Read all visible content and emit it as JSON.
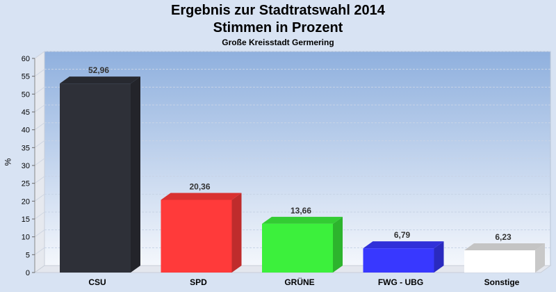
{
  "chart_data": {
    "type": "bar",
    "title": "Ergebnis zur Stadtratswahl 2014",
    "subtitle": "Stimmen in Prozent",
    "caption": "Große Kreisstadt Germering",
    "ylabel": "%",
    "xlabel": "",
    "ylim": [
      0,
      60
    ],
    "yticks": [
      0,
      5,
      10,
      15,
      20,
      25,
      30,
      35,
      40,
      45,
      50,
      55,
      60
    ],
    "grid": true,
    "categories": [
      "CSU",
      "SPD",
      "GRÜNE",
      "FWG - UBG",
      "Sonstige"
    ],
    "values": [
      52.96,
      20.36,
      13.66,
      6.79,
      6.23
    ],
    "value_labels": [
      "52,96",
      "20,36",
      "13,66",
      "6,79",
      "6,23"
    ],
    "colors": [
      "#2e3038",
      "#ff3a3a",
      "#3cf03c",
      "#3838ff",
      "#ffffff"
    ]
  }
}
